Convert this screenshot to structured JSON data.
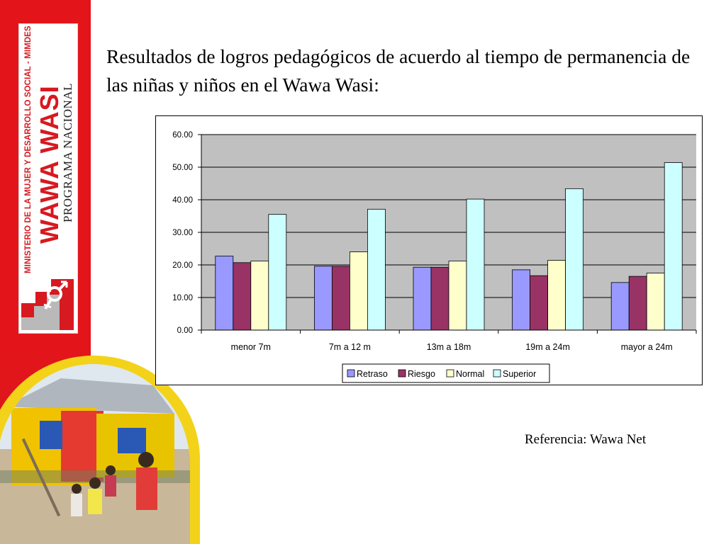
{
  "slide": {
    "title": "Resultados de logros pedagógicos de acuerdo al tiempo de permanencia de las niñas y niños en el Wawa Wasi:",
    "reference": "Referencia: Wawa Net"
  },
  "logo": {
    "ministry": "MINISTERIO DE LA MUJER Y DESARROLLO SOCIAL - MIMDES",
    "name": "WAWA WASI",
    "program": "PROGRAMA NACIONAL"
  },
  "colors": {
    "left_band": "#e3151b",
    "plot_bg": "#c0c0c0",
    "photo_ring": "#f3d21a"
  },
  "chart_data": {
    "type": "bar",
    "categories": [
      "menor 7m",
      "7m a 12 m",
      "13m a 18m",
      "19m a 24m",
      "mayor a 24m"
    ],
    "series": [
      {
        "name": "Retraso",
        "color": "#9999ff",
        "values": [
          22.7,
          19.6,
          19.3,
          18.5,
          14.6
        ]
      },
      {
        "name": "Riesgo",
        "color": "#993366",
        "values": [
          20.7,
          19.6,
          19.3,
          16.7,
          16.5
        ]
      },
      {
        "name": "Normal",
        "color": "#ffffcc",
        "values": [
          21.2,
          24.0,
          21.2,
          21.4,
          17.5
        ]
      },
      {
        "name": "Superior",
        "color": "#ccffff",
        "values": [
          35.5,
          37.1,
          40.2,
          43.4,
          51.4
        ]
      }
    ],
    "yticks": [
      "0.00",
      "10.00",
      "20.00",
      "30.00",
      "40.00",
      "50.00",
      "60.00"
    ],
    "ylim": [
      0,
      60
    ],
    "grid": true,
    "legend_position": "bottom"
  }
}
